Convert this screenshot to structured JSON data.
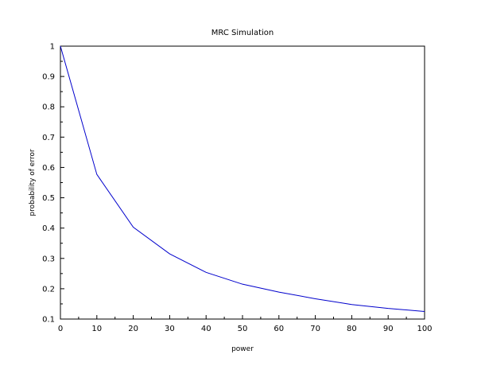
{
  "chart_data": {
    "type": "line",
    "title": "MRC Simulation",
    "xlabel": "power",
    "ylabel": "probability of error",
    "xlim": [
      0,
      100
    ],
    "ylim": [
      0.1,
      1
    ],
    "x_ticks": [
      0,
      10,
      20,
      30,
      40,
      50,
      60,
      70,
      80,
      90,
      100
    ],
    "y_ticks": [
      0.1,
      0.2,
      0.3,
      0.4,
      0.5,
      0.6,
      0.7,
      0.8,
      0.9,
      1
    ],
    "x_tick_labels": [
      "0",
      "10",
      "20",
      "30",
      "40",
      "50",
      "60",
      "70",
      "80",
      "90",
      "100"
    ],
    "y_tick_labels": [
      "0.1",
      "0.2",
      "0.3",
      "0.4",
      "0.5",
      "0.6",
      "0.7",
      "0.8",
      "0.9",
      "1"
    ],
    "grid": false,
    "series": [
      {
        "color": "#0000cc",
        "x": [
          0,
          10,
          20,
          30,
          40,
          50,
          60,
          70,
          80,
          90,
          100
        ],
        "y": [
          1.0,
          0.577,
          0.403,
          0.315,
          0.254,
          0.215,
          0.189,
          0.167,
          0.148,
          0.135,
          0.125
        ]
      }
    ]
  }
}
